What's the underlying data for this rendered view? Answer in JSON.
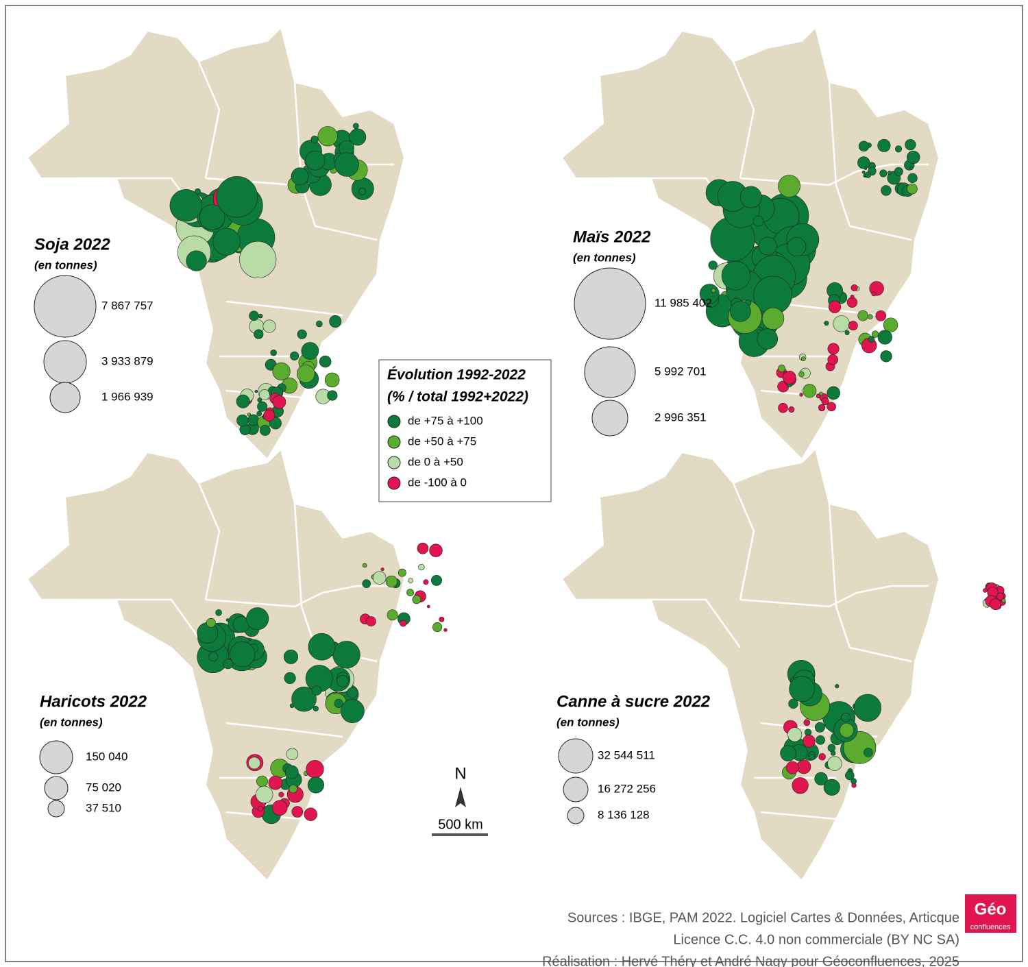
{
  "maps": [
    {
      "title": "Soja 2022",
      "unit": "(en tonnes)",
      "legend_sizes": [
        "7 867 757",
        "3 933 879",
        "1 966 939"
      ]
    },
    {
      "title": "Maïs 2022",
      "unit": "(en tonnes)",
      "legend_sizes": [
        "11 985 402",
        "5 992 701",
        "2 996 351"
      ]
    },
    {
      "title": "Haricots 2022",
      "unit": "(en tonnes)",
      "legend_sizes": [
        "150 040",
        "75 020",
        "37 510"
      ]
    },
    {
      "title": "Canne à sucre 2022",
      "unit": "(en tonnes)",
      "legend_sizes": [
        "32 544 511",
        "16 272 256",
        "8 136 128"
      ]
    }
  ],
  "legend": {
    "title": "Évolution 1992-2022",
    "subtitle": "(% / total 1992+2022)",
    "classes": [
      {
        "label": "de +75 à +100",
        "color": "#0b7a3b"
      },
      {
        "label": "de +50 à +75",
        "color": "#5aab2e"
      },
      {
        "label": "de 0 à +50",
        "color": "#b9dca6"
      },
      {
        "label": "de -100 à 0",
        "color": "#e0144f"
      }
    ]
  },
  "scale": {
    "north": "N",
    "distance": "500 km"
  },
  "sources": [
    "Sources : IBGE, PAM 2022. Logiciel Cartes & Données, Articque",
    "Licence C.C. 4.0 non commerciale (BY NC SA)",
    "Réalisation : Hervé Théry et André Nagy pour Géoconfluences, 2025"
  ],
  "logo": {
    "main": "Géo",
    "sub": "confluences"
  }
}
